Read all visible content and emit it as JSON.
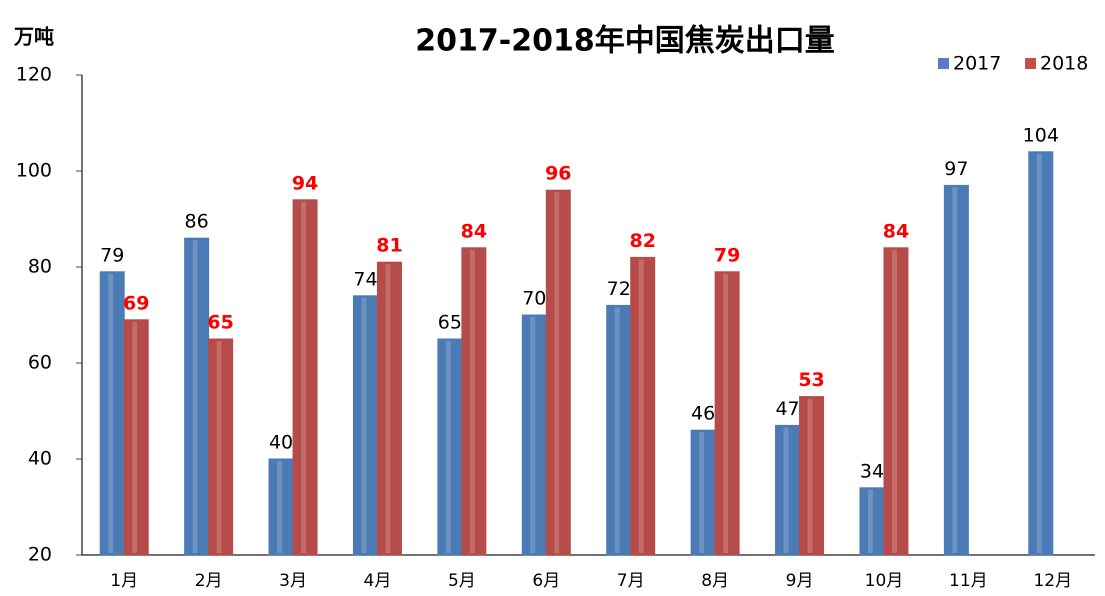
{
  "chart_data": {
    "type": "bar",
    "title": "2017-2018年中国焦炭出口量",
    "y_label": "万吨",
    "categories": [
      "1月",
      "2月",
      "3月",
      "4月",
      "5月",
      "6月",
      "7月",
      "8月",
      "9月",
      "10月",
      "11月",
      "12月"
    ],
    "series": [
      {
        "name": "2017",
        "color": "#4f81bd",
        "label_color": "#000000",
        "values": [
          79,
          86,
          40,
          74,
          65,
          70,
          72,
          46,
          47,
          34,
          97,
          104
        ]
      },
      {
        "name": "2018",
        "color": "#c0504d",
        "label_color": "#ff0000",
        "values": [
          69,
          65,
          94,
          81,
          84,
          96,
          82,
          79,
          53,
          84,
          null,
          null
        ]
      }
    ],
    "ylim": [
      20,
      120
    ],
    "yticks": [
      20,
      40,
      60,
      80,
      100,
      120
    ],
    "legend": "top-right",
    "grid": false
  }
}
